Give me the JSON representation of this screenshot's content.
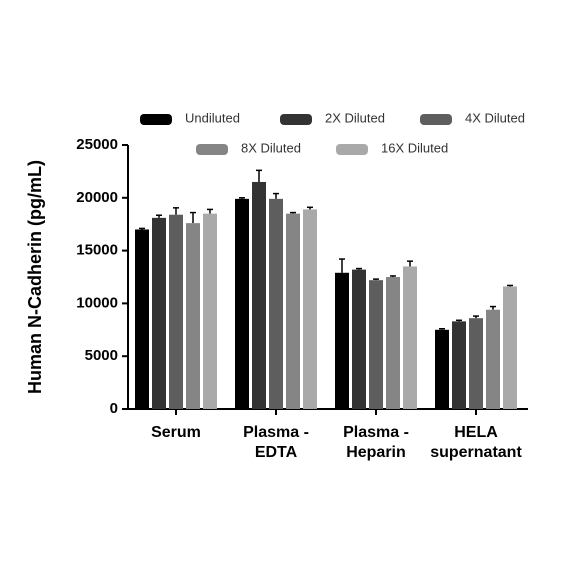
{
  "chart_data": {
    "type": "bar",
    "ylabel": "Human N-Cadherin (pg/mL)",
    "categories": [
      "Serum",
      "Plasma -\nEDTA",
      "Plasma -\nHeparin",
      "HELA\nsupernatant"
    ],
    "series": [
      {
        "name": "Undiluted",
        "color": "#000000",
        "values": [
          17000,
          19900,
          12900,
          7500
        ],
        "errors": [
          100,
          100,
          1300,
          100
        ]
      },
      {
        "name": "2X Diluted",
        "color": "#333333",
        "values": [
          18100,
          21500,
          13200,
          8300
        ],
        "errors": [
          250,
          1100,
          100,
          100
        ]
      },
      {
        "name": "4X Diluted",
        "color": "#5e5e5e",
        "values": [
          18400,
          19900,
          12200,
          8600
        ],
        "errors": [
          650,
          500,
          100,
          200
        ]
      },
      {
        "name": "8X Diluted",
        "color": "#858585",
        "values": [
          17600,
          18500,
          12500,
          9400
        ],
        "errors": [
          1000,
          100,
          100,
          300
        ]
      },
      {
        "name": "16X Diluted",
        "color": "#a9a9a9",
        "values": [
          18500,
          18900,
          13500,
          11600
        ],
        "errors": [
          400,
          200,
          500,
          100
        ]
      }
    ],
    "ylim": [
      0,
      25000
    ],
    "yticks": [
      0,
      5000,
      10000,
      15000,
      20000,
      25000
    ]
  }
}
